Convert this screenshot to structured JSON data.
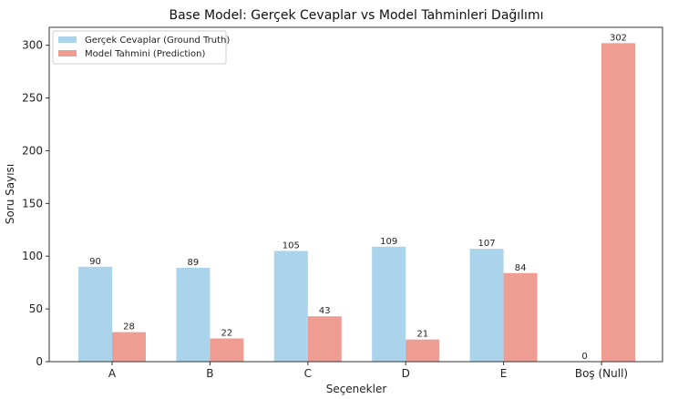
{
  "chart_data": {
    "type": "bar",
    "title": "Base Model: Gerçek Cevaplar vs Model Tahminleri Dağılımı",
    "xlabel": "Seçenekler",
    "ylabel": "Soru Sayısı",
    "categories": [
      "A",
      "B",
      "C",
      "D",
      "E",
      "Boş (Null)"
    ],
    "series": [
      {
        "name": "Gerçek Cevaplar (Ground Truth)",
        "values": [
          90,
          89,
          105,
          109,
          107,
          0
        ],
        "color": "#aad4ec"
      },
      {
        "name": "Model Tahmini (Prediction)",
        "values": [
          28,
          22,
          43,
          21,
          84,
          302
        ],
        "color": "#ef9c92"
      }
    ],
    "ylim": [
      0,
      317
    ],
    "yticks": [
      0,
      50,
      100,
      150,
      200,
      250,
      300
    ],
    "grid": false,
    "legend": "top-left"
  }
}
